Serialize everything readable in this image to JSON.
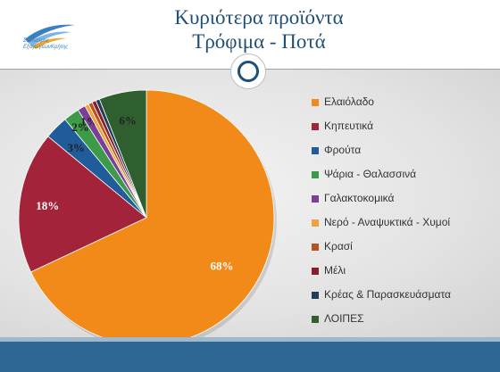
{
  "header": {
    "title_line1": "Κυριότερα προϊόντα",
    "title_line2": "Τρόφιμα - Ποτά",
    "logo_text_line1": "Σύνδεσμος",
    "logo_text_line2": "ΕξαγωγέωνΚρήτης"
  },
  "chart_data": {
    "type": "pie",
    "categories": [
      "Ελαιόλαδο",
      "Κηπευτικά",
      "Φρούτα",
      "Ψάρια - Θαλασσινά",
      "Γαλακτοκομικά",
      "Νερό - Αναψυκτικά - Χυμοί",
      "Κρασί",
      "Μέλι",
      "Κρέας & Παρασκευάσματα",
      "ΛΟΙΠΕΣ"
    ],
    "values": [
      68,
      18,
      3,
      2,
      1,
      0.5,
      0.5,
      0.5,
      0.5,
      6
    ],
    "data_labels": [
      "68%",
      "18%",
      "3%",
      "2%",
      "1%",
      "",
      "",
      "",
      "",
      "6%"
    ],
    "colors": [
      "#f28a1a",
      "#a3233a",
      "#1f5c99",
      "#3c9a48",
      "#7b3f99",
      "#f0a23c",
      "#b5541c",
      "#8a1f2c",
      "#1f3f5c",
      "#2f5f2f"
    ],
    "legend_position": "right"
  }
}
